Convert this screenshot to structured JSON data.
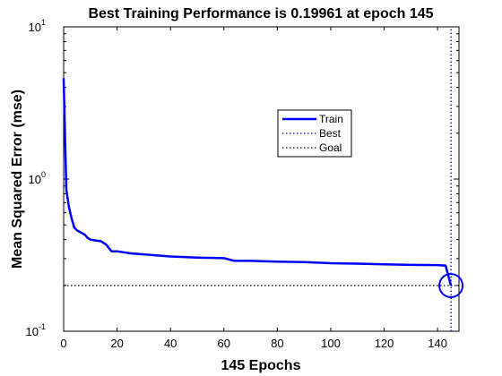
{
  "chart_data": {
    "type": "line",
    "title": "Best Training Performance is 0.19961 at epoch 145",
    "xlabel": "145 Epochs",
    "ylabel": "Mean Squared Error  (mse)",
    "yscale": "log",
    "xlim": [
      0,
      148
    ],
    "ylim": [
      0.1,
      10
    ],
    "x_ticks": [
      0,
      20,
      40,
      60,
      80,
      100,
      120,
      140
    ],
    "y_ticks": [
      {
        "value": 0.1,
        "base": "10",
        "exp": "-1"
      },
      {
        "value": 1,
        "base": "10",
        "exp": "0"
      },
      {
        "value": 10,
        "base": "10",
        "exp": "1"
      }
    ],
    "grid": false,
    "legend_position": "upper-middle-right",
    "series": [
      {
        "name": "Train",
        "style": "solid",
        "color": "#0000ff",
        "x": [
          0,
          1,
          2,
          3,
          4,
          5,
          6,
          7,
          8,
          9,
          10,
          12,
          14,
          15,
          16,
          17,
          18,
          20,
          25,
          30,
          40,
          50,
          60,
          64,
          70,
          80,
          90,
          100,
          110,
          120,
          130,
          140,
          143,
          145
        ],
        "y": [
          4.6,
          0.85,
          0.65,
          0.55,
          0.48,
          0.46,
          0.45,
          0.44,
          0.43,
          0.41,
          0.4,
          0.395,
          0.39,
          0.38,
          0.37,
          0.35,
          0.335,
          0.335,
          0.325,
          0.32,
          0.31,
          0.305,
          0.302,
          0.29,
          0.29,
          0.287,
          0.285,
          0.28,
          0.278,
          0.275,
          0.273,
          0.272,
          0.27,
          0.19961
        ]
      },
      {
        "name": "Best",
        "style": "dotted",
        "color": "#0000ff",
        "x": [
          145,
          145
        ],
        "y": [
          0.1,
          10
        ]
      },
      {
        "name": "Goal",
        "style": "dotted",
        "color": "#000000",
        "x": [
          0,
          148
        ],
        "y": [
          0.19961,
          0.19961
        ]
      }
    ],
    "best_marker": {
      "x": 145,
      "y": 0.19961
    }
  }
}
